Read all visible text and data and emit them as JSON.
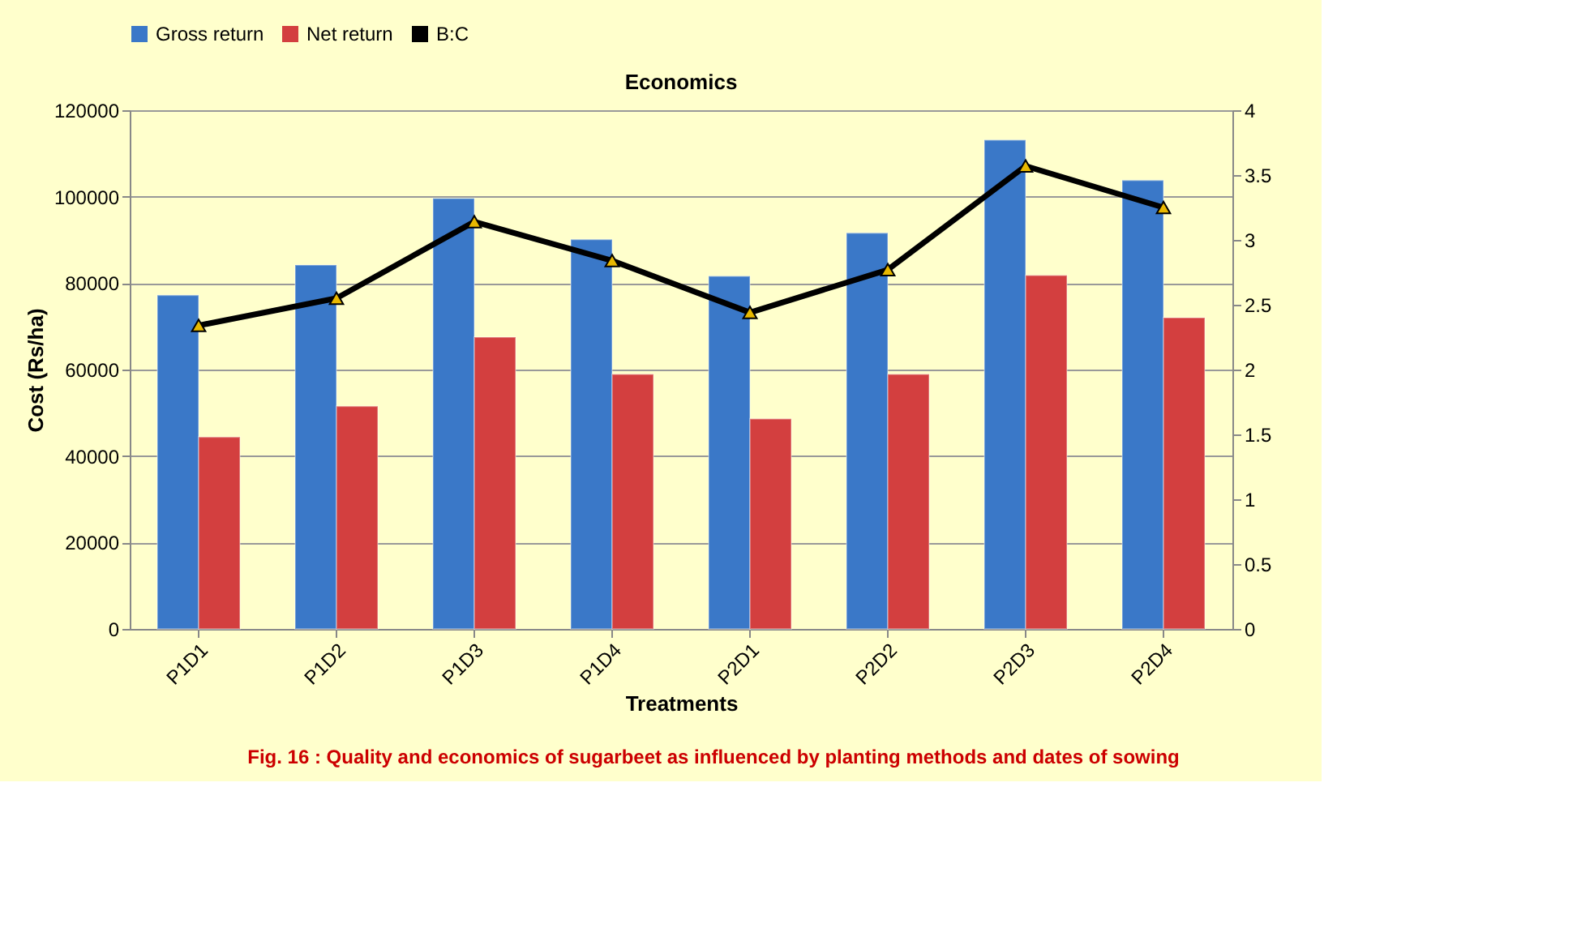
{
  "chart_data": {
    "type": "bar",
    "title": "Economics",
    "xlabel": "Treatments",
    "ylabel": "Cost (Rs/ha)",
    "categories": [
      "P1D1",
      "P1D2",
      "P1D3",
      "P1D4",
      "P2D1",
      "P2D2",
      "P2D3",
      "P2D4"
    ],
    "series": [
      {
        "name": "Gross return",
        "color": "#3a78c8",
        "values": [
          77200,
          84200,
          99600,
          90100,
          81600,
          91600,
          113100,
          103800
        ]
      },
      {
        "name": "Net return",
        "color": "#d33f3f",
        "values": [
          44400,
          51500,
          67500,
          58900,
          48600,
          58900,
          81800,
          72000
        ]
      },
      {
        "name": "B:C",
        "type": "line",
        "axis": "y2",
        "color": "#000000",
        "marker": "triangle",
        "values": [
          2.34,
          2.55,
          3.14,
          2.84,
          2.44,
          2.77,
          3.57,
          3.25
        ]
      }
    ],
    "ylim": [
      0,
      120000
    ],
    "yticks": [
      0,
      20000,
      40000,
      60000,
      80000,
      100000,
      120000
    ],
    "y2lim": [
      0,
      4
    ],
    "y2ticks": [
      0,
      0.5,
      1,
      1.5,
      2,
      2.5,
      3,
      3.5,
      4
    ],
    "grid": "y",
    "legend": "top",
    "annotations": [
      "Fig. 16 : Quality and economics of sugarbeet as influenced by planting methods  and dates of sowing"
    ]
  }
}
